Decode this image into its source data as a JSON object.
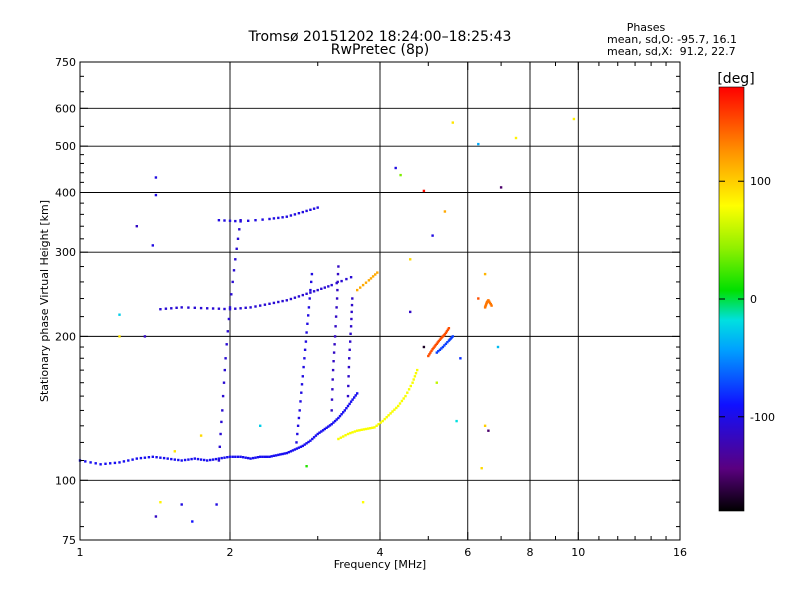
{
  "chart_data": {
    "type": "scatter",
    "title": "Tromsø 20151202 18:24:00–18:25:43",
    "subtitle": "RwPretec (8p)",
    "xlabel": "Frequency [MHz]",
    "ylabel": "Stationary phase Virtual Height [km]",
    "x_scale": "log",
    "y_scale": "log",
    "xlim": [
      1,
      16
    ],
    "ylim": [
      75,
      750
    ],
    "x_ticks": [
      "1",
      "2",
      "4",
      "6",
      "8",
      "10",
      "16"
    ],
    "x_tick_values": [
      1,
      2,
      4,
      6,
      8,
      10,
      16
    ],
    "y_ticks": [
      "750",
      "600",
      "500",
      "400",
      "300",
      "200",
      "100",
      "75"
    ],
    "y_tick_values": [
      750,
      600,
      500,
      400,
      300,
      200,
      100,
      75
    ],
    "grid": true,
    "info": {
      "heading": "Phases",
      "line1": "mean, sd,O: -95.7, 16.1",
      "line2": "mean, sd,X:  91.2, 22.7"
    },
    "colorbar": {
      "label": "[deg]",
      "range": [
        -180,
        180
      ],
      "tick_labels": [
        "100",
        "0",
        "-100"
      ],
      "tick_values": [
        100,
        0,
        -100
      ]
    },
    "traces": [
      {
        "points": [
          [
            1.0,
            110
          ],
          [
            1.1,
            108
          ],
          [
            1.2,
            109
          ],
          [
            1.3,
            111
          ],
          [
            1.4,
            112
          ],
          [
            1.5,
            111
          ],
          [
            1.6,
            110
          ],
          [
            1.7,
            111
          ],
          [
            1.8,
            110
          ],
          [
            1.9,
            111
          ],
          [
            2.0,
            112
          ],
          [
            2.1,
            112
          ],
          [
            2.2,
            111
          ],
          [
            2.3,
            112
          ],
          [
            2.4,
            112
          ],
          [
            2.5,
            113
          ],
          [
            2.6,
            114
          ],
          [
            2.7,
            116
          ],
          [
            2.8,
            118
          ],
          [
            2.9,
            121
          ],
          [
            3.0,
            125
          ],
          [
            3.1,
            128
          ],
          [
            3.2,
            131
          ],
          [
            3.3,
            135
          ],
          [
            3.4,
            140
          ],
          [
            3.5,
            146
          ],
          [
            3.6,
            152
          ]
        ],
        "phase": -105
      },
      {
        "points": [
          [
            3.3,
            122
          ],
          [
            3.45,
            125
          ],
          [
            3.6,
            127
          ],
          [
            3.75,
            128
          ],
          [
            3.9,
            129
          ],
          [
            4.05,
            133
          ],
          [
            4.2,
            138
          ],
          [
            4.35,
            143
          ],
          [
            4.5,
            150
          ],
          [
            4.65,
            160
          ],
          [
            4.75,
            170
          ]
        ],
        "phase": 78
      },
      {
        "points": [
          [
            5.0,
            182
          ],
          [
            5.1,
            188
          ],
          [
            5.2,
            193
          ],
          [
            5.3,
            198
          ],
          [
            5.4,
            202
          ],
          [
            5.5,
            208
          ]
        ],
        "phase": 150
      },
      {
        "points": [
          [
            5.2,
            185
          ],
          [
            5.35,
            190
          ],
          [
            5.5,
            196
          ],
          [
            5.6,
            200
          ]
        ],
        "phase": -85
      },
      {
        "points": [
          [
            1.45,
            228
          ],
          [
            1.6,
            230
          ],
          [
            1.8,
            229
          ],
          [
            2.0,
            228
          ],
          [
            2.2,
            230
          ],
          [
            2.4,
            234
          ],
          [
            2.6,
            238
          ],
          [
            2.8,
            244
          ],
          [
            3.0,
            250
          ],
          [
            3.2,
            256
          ],
          [
            3.5,
            266
          ]
        ],
        "phase": -115
      },
      {
        "points": [
          [
            3.6,
            250
          ],
          [
            3.8,
            262
          ],
          [
            3.95,
            272
          ]
        ],
        "phase": 115
      },
      {
        "points": [
          [
            1.9,
            350
          ],
          [
            2.1,
            348
          ],
          [
            2.4,
            352
          ],
          [
            2.6,
            356
          ],
          [
            2.8,
            364
          ],
          [
            3.0,
            372
          ]
        ],
        "phase": -110
      },
      {
        "points": [
          [
            1.9,
            110
          ],
          [
            1.93,
            140
          ],
          [
            1.96,
            180
          ],
          [
            2.0,
            230
          ],
          [
            2.05,
            290
          ],
          [
            2.1,
            350
          ]
        ],
        "phase": -115
      },
      {
        "points": [
          [
            2.72,
            120
          ],
          [
            2.76,
            140
          ],
          [
            2.8,
            165
          ],
          [
            2.84,
            195
          ],
          [
            2.88,
            230
          ],
          [
            2.92,
            270
          ]
        ],
        "phase": -110
      },
      {
        "points": [
          [
            3.2,
            140
          ],
          [
            3.22,
            170
          ],
          [
            3.25,
            200
          ],
          [
            3.28,
            240
          ],
          [
            3.3,
            280
          ]
        ],
        "phase": -120
      },
      {
        "points": [
          [
            3.45,
            150
          ],
          [
            3.47,
            180
          ],
          [
            3.5,
            210
          ],
          [
            3.52,
            240
          ]
        ],
        "phase": -118
      },
      {
        "points": [
          [
            6.5,
            230
          ],
          [
            6.55,
            235
          ],
          [
            6.6,
            238
          ],
          [
            6.7,
            232
          ]
        ],
        "phase": 135
      }
    ],
    "scatter_points": [
      {
        "x": 1.42,
        "y": 430,
        "phase": -110
      },
      {
        "x": 1.42,
        "y": 395,
        "phase": -110
      },
      {
        "x": 1.3,
        "y": 340,
        "phase": -120
      },
      {
        "x": 1.4,
        "y": 310,
        "phase": -110
      },
      {
        "x": 1.35,
        "y": 200,
        "phase": -120
      },
      {
        "x": 1.45,
        "y": 90,
        "phase": 85
      },
      {
        "x": 1.6,
        "y": 89,
        "phase": -110
      },
      {
        "x": 1.42,
        "y": 84,
        "phase": -120
      },
      {
        "x": 1.88,
        "y": 89,
        "phase": -110
      },
      {
        "x": 1.68,
        "y": 82,
        "phase": -100
      },
      {
        "x": 3.7,
        "y": 90,
        "phase": 80
      },
      {
        "x": 4.3,
        "y": 450,
        "phase": -110
      },
      {
        "x": 4.4,
        "y": 435,
        "phase": 40
      },
      {
        "x": 4.9,
        "y": 403,
        "phase": 175
      },
      {
        "x": 5.1,
        "y": 325,
        "phase": -110
      },
      {
        "x": 5.4,
        "y": 365,
        "phase": 115
      },
      {
        "x": 5.6,
        "y": 560,
        "phase": 90
      },
      {
        "x": 6.3,
        "y": 505,
        "phase": -50
      },
      {
        "x": 7.0,
        "y": 410,
        "phase": -150
      },
      {
        "x": 7.5,
        "y": 520,
        "phase": 85
      },
      {
        "x": 9.8,
        "y": 570,
        "phase": 85
      },
      {
        "x": 4.6,
        "y": 290,
        "phase": 95
      },
      {
        "x": 4.6,
        "y": 225,
        "phase": -120
      },
      {
        "x": 5.2,
        "y": 160,
        "phase": 60
      },
      {
        "x": 5.7,
        "y": 133,
        "phase": -20
      },
      {
        "x": 6.4,
        "y": 106,
        "phase": 95
      },
      {
        "x": 6.5,
        "y": 130,
        "phase": 100
      },
      {
        "x": 6.6,
        "y": 127,
        "phase": -150
      },
      {
        "x": 6.3,
        "y": 240,
        "phase": 150
      },
      {
        "x": 6.5,
        "y": 270,
        "phase": 110
      },
      {
        "x": 6.9,
        "y": 190,
        "phase": -40
      },
      {
        "x": 2.85,
        "y": 107,
        "phase": 15
      },
      {
        "x": 1.2,
        "y": 222,
        "phase": -30
      },
      {
        "x": 1.2,
        "y": 200,
        "phase": 90
      },
      {
        "x": 2.3,
        "y": 130,
        "phase": -30
      },
      {
        "x": 4.9,
        "y": 190,
        "phase": -170
      },
      {
        "x": 5.8,
        "y": 180,
        "phase": -90
      },
      {
        "x": 1.55,
        "y": 115,
        "phase": 90
      },
      {
        "x": 1.75,
        "y": 124,
        "phase": 95
      }
    ]
  }
}
